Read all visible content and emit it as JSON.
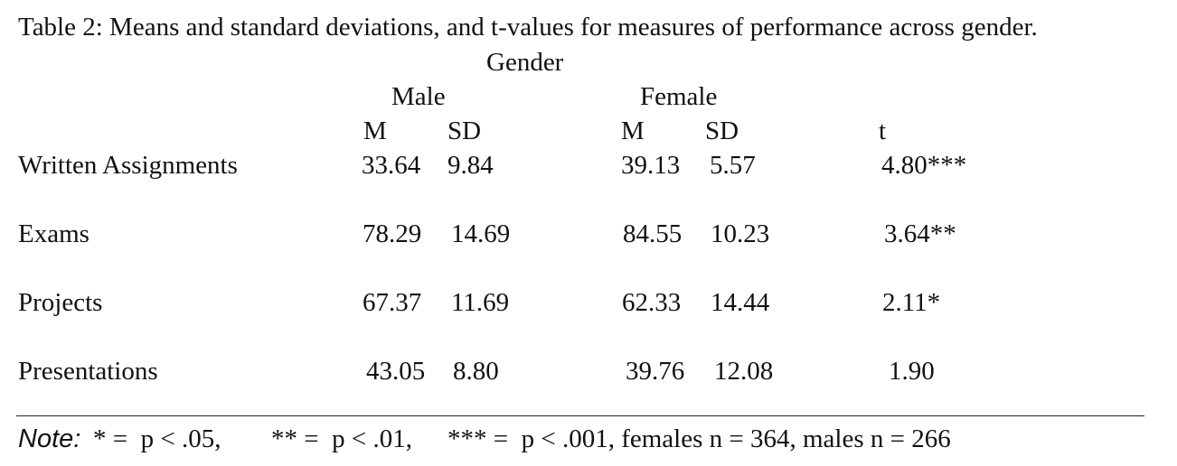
{
  "caption": "Table 2: Means and standard deviations, and t-values for measures of performance across gender.",
  "header": {
    "group_label": "Gender",
    "male_label": "Male",
    "female_label": "Female",
    "male_m": "M",
    "male_sd": "SD",
    "female_m": "M",
    "female_sd": "SD",
    "t_label": "t"
  },
  "rows": [
    {
      "measure": "Written Assignments",
      "male_m": "33.64",
      "male_sd": "9.84",
      "female_m": "39.13",
      "female_sd": "5.57",
      "t": "4.80***"
    },
    {
      "measure": "Exams",
      "male_m": "78.29",
      "male_sd": "14.69",
      "female_m": "84.55",
      "female_sd": "10.23",
      "t": "3.64**"
    },
    {
      "measure": "Projects",
      "male_m": "67.37",
      "male_sd": "11.69",
      "female_m": "62.33",
      "female_sd": "14.44",
      "t": "2.11*"
    },
    {
      "measure": "Presentations",
      "male_m": "43.05",
      "male_sd": "8.80",
      "female_m": "39.76",
      "female_sd": "12.08",
      "t": "1.90"
    }
  ],
  "note": {
    "label": "Note:",
    "p1": "* =  p < .05,",
    "p2": "** =  p < .01,",
    "p3": "*** =  p < .001, females n = 364, males n = 266"
  }
}
